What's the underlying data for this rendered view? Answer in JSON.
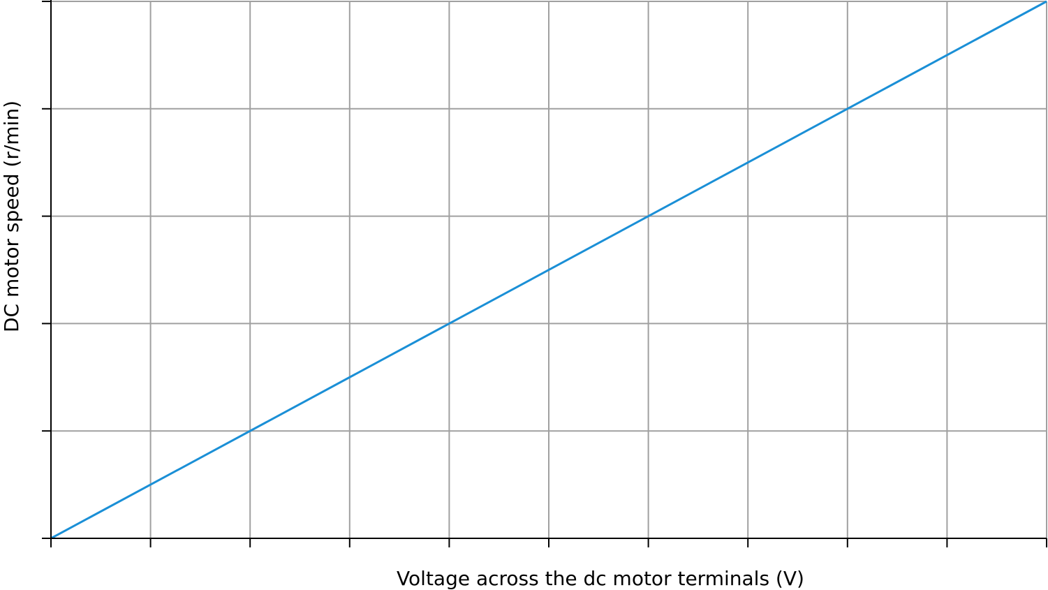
{
  "chart_data": {
    "type": "line",
    "title": "",
    "xlabel": "Voltage across the dc motor terminals (V)",
    "ylabel": "DC motor speed (r/min)",
    "xlim": [
      0,
      10
    ],
    "ylim": [
      0,
      5
    ],
    "x_tick_count": 10,
    "y_tick_count": 5,
    "grid": true,
    "tick_labels_shown": false,
    "series": [
      {
        "color": "#1a8fd6",
        "x": [
          0,
          10
        ],
        "y": [
          0,
          5
        ]
      }
    ]
  }
}
